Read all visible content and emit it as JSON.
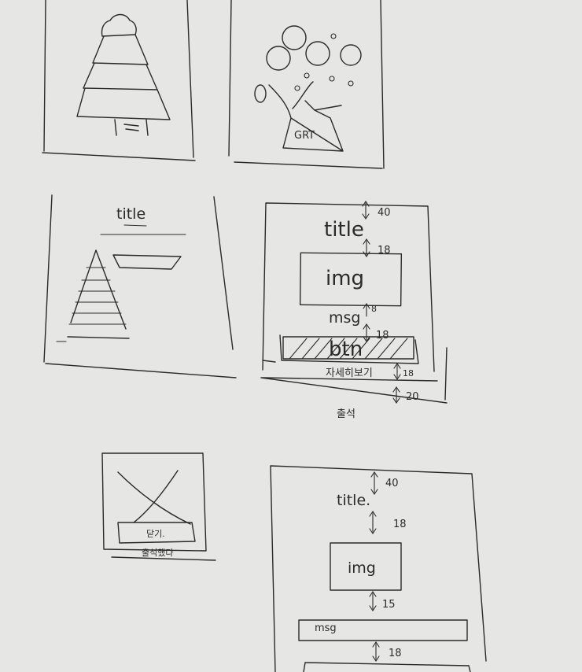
{
  "sketch": {
    "panel_b": {
      "trunk_text": "GRT"
    },
    "panel_c": {
      "title": "title"
    },
    "panel_d": {
      "gap_top": "40",
      "title": "title",
      "gap_after_title": "18",
      "img": "img",
      "gap_after_img": "8",
      "msg": "msg",
      "gap_after_msg": "18",
      "btn": "btn",
      "footer_text": "자세히보기",
      "gap_footer": "18",
      "gap_bottom": "20",
      "caption": "출석"
    },
    "panel_e": {
      "button": "닫기.",
      "footer_text": "출석했다"
    },
    "panel_f": {
      "gap_top": "40",
      "title": "title.",
      "gap_after_title": "18",
      "img": "img",
      "gap_after_img": "15",
      "msg": "msg",
      "gap_after_msg": "18"
    }
  }
}
